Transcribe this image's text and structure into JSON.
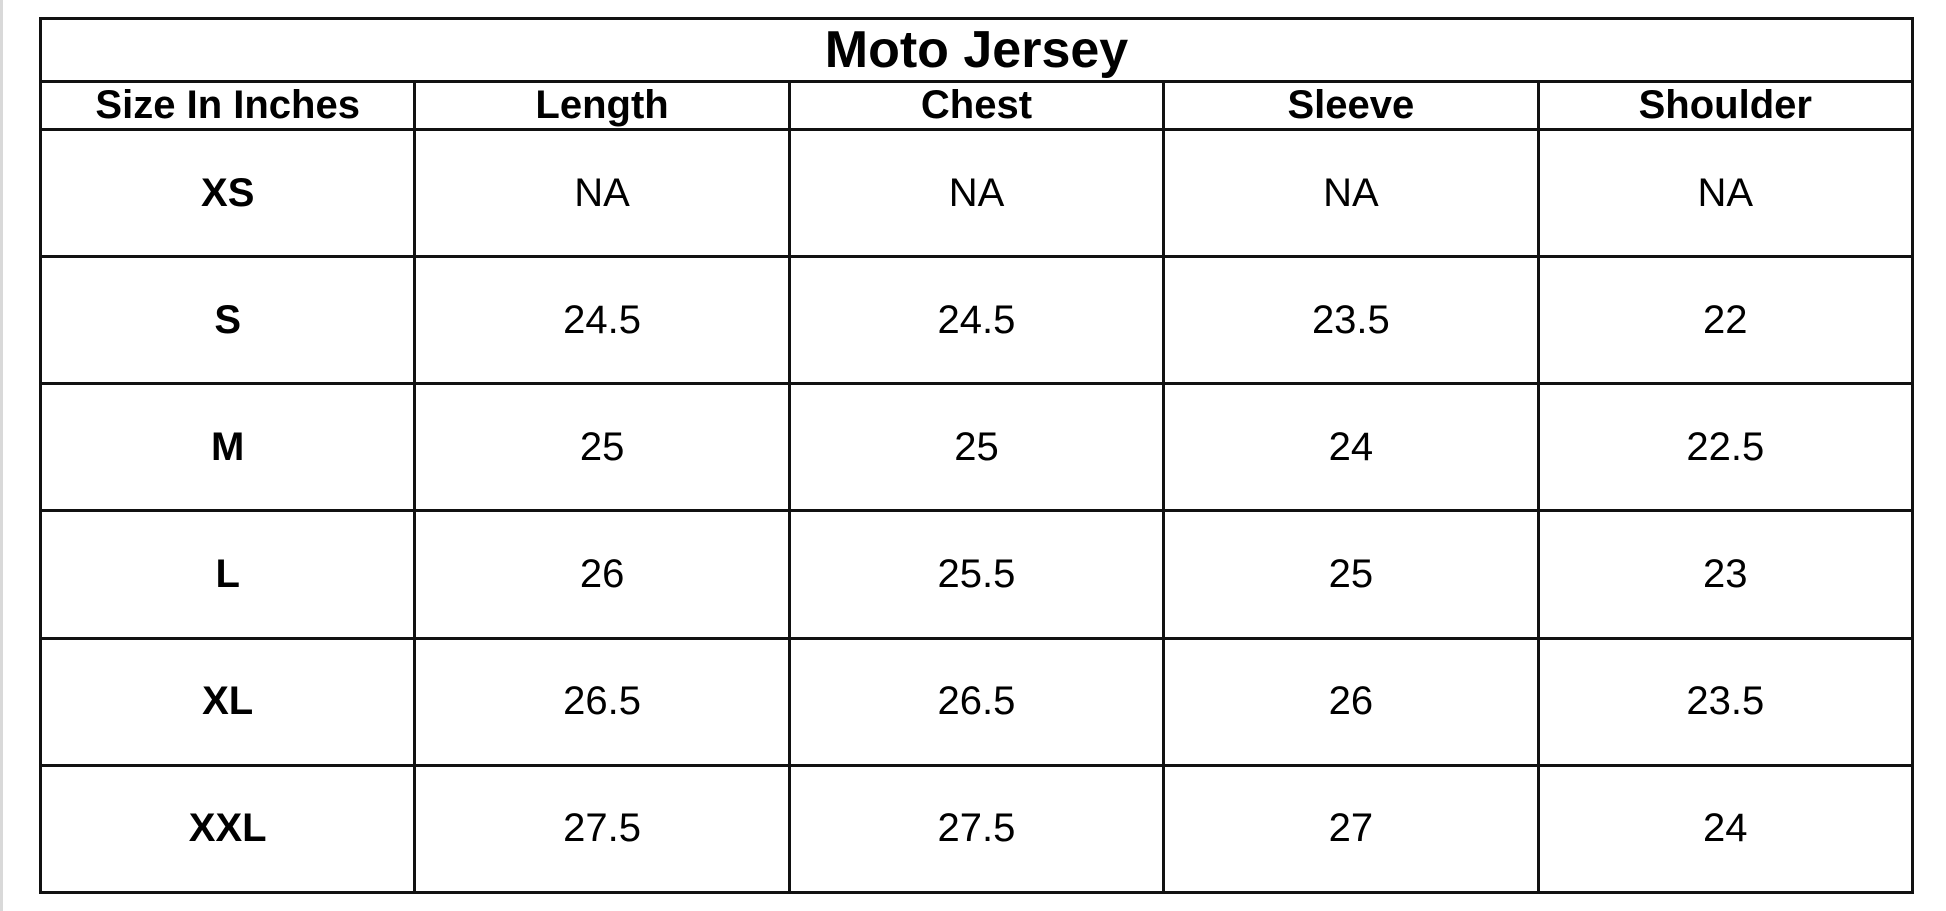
{
  "table": {
    "title": "Moto Jersey",
    "header": [
      "Size In Inches",
      "Length",
      "Chest",
      "Sleeve",
      "Shoulder"
    ],
    "rows": [
      [
        "XS",
        "NA",
        "NA",
        "NA",
        "NA"
      ],
      [
        "S",
        "24.5",
        "24.5",
        "23.5",
        "22"
      ],
      [
        "M",
        "25",
        "25",
        "24",
        "22.5"
      ],
      [
        "L",
        "26",
        "25.5",
        "25",
        "23"
      ],
      [
        "XL",
        "26.5",
        "26.5",
        "26",
        "23.5"
      ],
      [
        "XXL",
        "27.5",
        "27.5",
        "27",
        "24"
      ]
    ]
  }
}
